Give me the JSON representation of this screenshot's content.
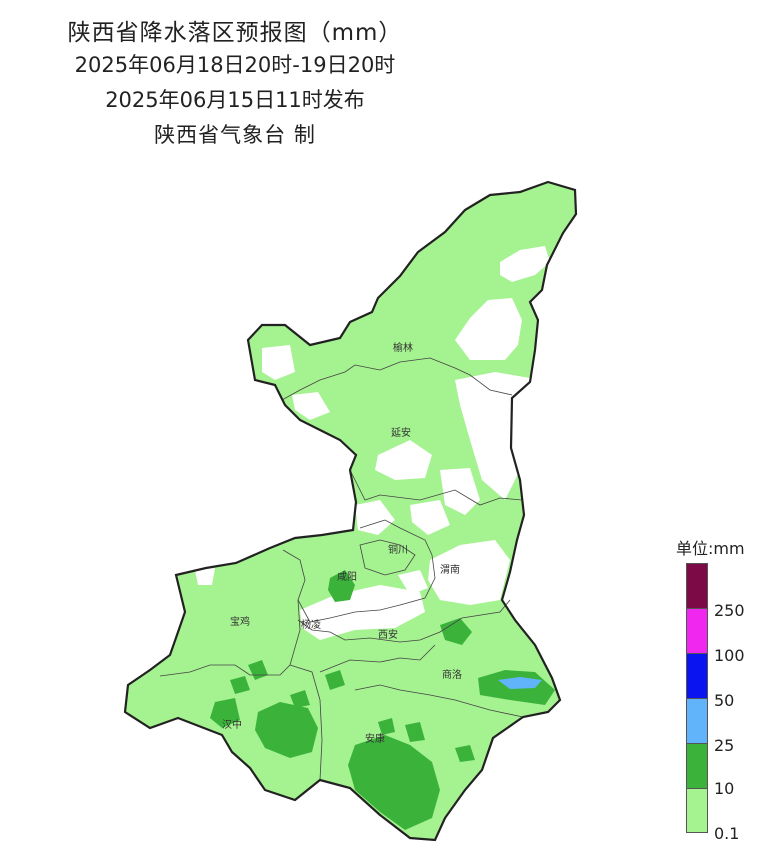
{
  "title": {
    "line1": "陕西省降水落区预报图（mm）",
    "line2": "2025年06月18日20时-19日20时",
    "line3": "2025年06月15日11时发布",
    "line4": "陕西省气象台 制"
  },
  "cities": [
    "榆林",
    "延安",
    "铜川",
    "咸阳",
    "渭南",
    "宝鸡",
    "杨凌",
    "西安",
    "商洛",
    "汉中",
    "安康"
  ],
  "legend": {
    "title": "单位:mm",
    "levels": [
      {
        "label": "",
        "color": "#7b0a47"
      },
      {
        "label": "250",
        "color": "#ef27ef"
      },
      {
        "label": "100",
        "color": "#0a14f0"
      },
      {
        "label": "50",
        "color": "#62b4fa"
      },
      {
        "label": "25",
        "color": "#3bb33b"
      },
      {
        "label": "10",
        "color": "#a5f290"
      },
      {
        "label": "0.1",
        "color": ""
      }
    ]
  },
  "colors": {
    "light_green": "#a5f290",
    "green": "#3bb33b",
    "light_blue": "#62b4fa",
    "boundary": "#222222"
  }
}
